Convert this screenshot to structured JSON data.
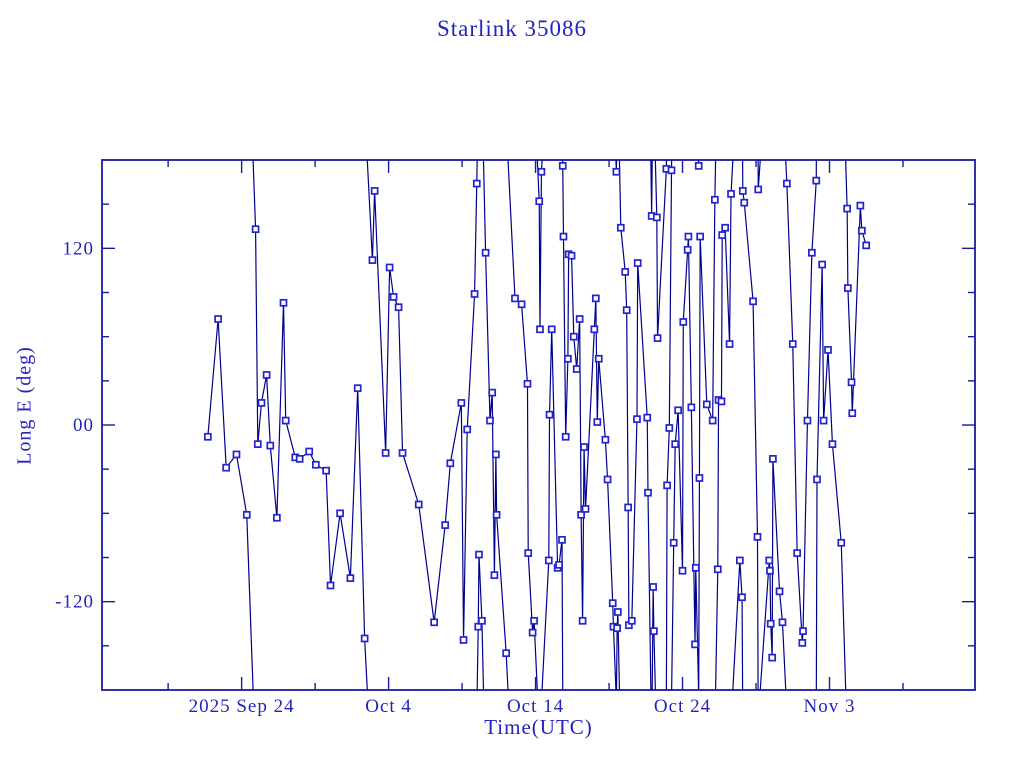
{
  "chart_data": {
    "type": "line",
    "title": "Starlink 35086",
    "xlabel": "Time(UTC)",
    "ylabel": "Long E (deg)",
    "x_unit": "days relative to 2025 Sep 24 (UTC)",
    "y_unit": "degrees East longitude",
    "xlim": [
      -9.5,
      49.9
    ],
    "ylim": [
      -180,
      180
    ],
    "grid": false,
    "legend": "none",
    "wrap_at_deg": 180,
    "marker": "open-square",
    "x_major_ticks": [
      {
        "day": 0,
        "label": "2025 Sep 24"
      },
      {
        "day": 10,
        "label": "Oct  4"
      },
      {
        "day": 20,
        "label": "Oct 14"
      },
      {
        "day": 30,
        "label": "Oct 24"
      },
      {
        "day": 40,
        "label": "Nov  3"
      }
    ],
    "x_minor_step_days": 5,
    "y_major_ticks": [
      {
        "value": 120,
        "label": "120"
      },
      {
        "value": 0,
        "label": "00"
      },
      {
        "value": -120,
        "label": "-120"
      }
    ],
    "y_minor_step_deg": 30,
    "colors": {
      "background": "#FFFFFF",
      "axis": "#1A1AA0",
      "text": "#2323C0",
      "line": "#00008B",
      "marker": "#2323CF",
      "marker_fill": "#FFFFFF"
    },
    "points": [
      [
        -2.3,
        -8
      ],
      [
        -1.6,
        72
      ],
      [
        -1.05,
        -29
      ],
      [
        -0.35,
        -20
      ],
      [
        0.35,
        -61
      ],
      [
        0.95,
        133
      ],
      [
        1.1,
        -13
      ],
      [
        1.35,
        15
      ],
      [
        1.7,
        34
      ],
      [
        1.95,
        -14
      ],
      [
        2.4,
        -63
      ],
      [
        2.85,
        83
      ],
      [
        3.0,
        3
      ],
      [
        3.65,
        -22
      ],
      [
        3.95,
        -23
      ],
      [
        4.6,
        -18
      ],
      [
        5.05,
        -27
      ],
      [
        5.75,
        -31
      ],
      [
        6.05,
        -109
      ],
      [
        6.7,
        -60
      ],
      [
        7.4,
        -104
      ],
      [
        7.9,
        25
      ],
      [
        8.37,
        -145
      ],
      [
        8.9,
        112
      ],
      [
        9.05,
        159
      ],
      [
        9.8,
        -19
      ],
      [
        10.07,
        107
      ],
      [
        10.34,
        87
      ],
      [
        10.68,
        80
      ],
      [
        10.95,
        -19
      ],
      [
        12.05,
        -54
      ],
      [
        13.1,
        -134
      ],
      [
        13.85,
        -68
      ],
      [
        14.2,
        -26
      ],
      [
        14.95,
        15
      ],
      [
        15.1,
        -146
      ],
      [
        15.35,
        -3
      ],
      [
        15.85,
        89
      ],
      [
        16.0,
        164
      ],
      [
        16.1,
        -137
      ],
      [
        16.15,
        -88
      ],
      [
        16.35,
        -133
      ],
      [
        16.6,
        117
      ],
      [
        16.9,
        3
      ],
      [
        17.05,
        22
      ],
      [
        17.2,
        -102
      ],
      [
        17.3,
        -20
      ],
      [
        17.35,
        -61
      ],
      [
        18.0,
        -155
      ],
      [
        18.6,
        86
      ],
      [
        19.05,
        82
      ],
      [
        19.45,
        28
      ],
      [
        19.5,
        -87
      ],
      [
        19.8,
        -141
      ],
      [
        19.9,
        -133
      ],
      [
        20.25,
        152
      ],
      [
        20.3,
        65
      ],
      [
        20.4,
        172
      ],
      [
        20.9,
        -92
      ],
      [
        20.95,
        7
      ],
      [
        21.1,
        65
      ],
      [
        21.5,
        -97
      ],
      [
        21.6,
        -95
      ],
      [
        21.8,
        -78
      ],
      [
        21.85,
        176
      ],
      [
        21.9,
        128
      ],
      [
        22.05,
        -8
      ],
      [
        22.2,
        45
      ],
      [
        22.25,
        116
      ],
      [
        22.45,
        115
      ],
      [
        22.6,
        60
      ],
      [
        22.8,
        38
      ],
      [
        23.0,
        72
      ],
      [
        23.1,
        -61
      ],
      [
        23.2,
        -133
      ],
      [
        23.3,
        -15
      ],
      [
        23.4,
        -57
      ],
      [
        24.0,
        65
      ],
      [
        24.1,
        86
      ],
      [
        24.2,
        2
      ],
      [
        24.3,
        45
      ],
      [
        24.75,
        -10
      ],
      [
        24.9,
        -37
      ],
      [
        25.25,
        -121
      ],
      [
        25.3,
        -137
      ],
      [
        25.5,
        172
      ],
      [
        25.55,
        -138
      ],
      [
        25.6,
        -127
      ],
      [
        25.8,
        134
      ],
      [
        26.1,
        104
      ],
      [
        26.2,
        78
      ],
      [
        26.3,
        -56
      ],
      [
        26.35,
        -136
      ],
      [
        26.55,
        -133
      ],
      [
        26.9,
        4
      ],
      [
        26.95,
        110
      ],
      [
        27.6,
        5
      ],
      [
        27.65,
        -46
      ],
      [
        27.9,
        142
      ],
      [
        28.0,
        -110
      ],
      [
        28.05,
        -140
      ],
      [
        28.25,
        141
      ],
      [
        28.3,
        59
      ],
      [
        28.9,
        174
      ],
      [
        28.95,
        -41
      ],
      [
        29.1,
        -2
      ],
      [
        29.25,
        173
      ],
      [
        29.4,
        -80
      ],
      [
        29.5,
        -13
      ],
      [
        29.7,
        10
      ],
      [
        30.0,
        -99
      ],
      [
        30.05,
        70
      ],
      [
        30.35,
        119
      ],
      [
        30.4,
        128
      ],
      [
        30.6,
        12
      ],
      [
        30.85,
        -149
      ],
      [
        30.9,
        -97
      ],
      [
        31.1,
        176
      ],
      [
        31.15,
        -36
      ],
      [
        31.2,
        128
      ],
      [
        31.65,
        14
      ],
      [
        32.05,
        3
      ],
      [
        32.2,
        153
      ],
      [
        32.4,
        -98
      ],
      [
        32.45,
        17
      ],
      [
        32.65,
        16
      ],
      [
        32.7,
        129
      ],
      [
        32.9,
        134
      ],
      [
        33.2,
        55
      ],
      [
        33.3,
        157
      ],
      [
        33.9,
        -92
      ],
      [
        34.05,
        -117
      ],
      [
        34.1,
        159
      ],
      [
        34.2,
        151
      ],
      [
        34.8,
        84
      ],
      [
        35.1,
        -76
      ],
      [
        35.15,
        160
      ],
      [
        35.9,
        -92
      ],
      [
        35.95,
        -99
      ],
      [
        36.0,
        -135
      ],
      [
        36.1,
        -158
      ],
      [
        36.15,
        -23
      ],
      [
        36.6,
        -113
      ],
      [
        36.8,
        -134
      ],
      [
        37.1,
        164
      ],
      [
        37.5,
        55
      ],
      [
        37.8,
        -87
      ],
      [
        38.15,
        -148
      ],
      [
        38.2,
        -140
      ],
      [
        38.5,
        3
      ],
      [
        38.8,
        117
      ],
      [
        39.1,
        166
      ],
      [
        39.15,
        -37
      ],
      [
        39.5,
        109
      ],
      [
        39.6,
        3
      ],
      [
        39.9,
        51
      ],
      [
        40.2,
        -13
      ],
      [
        40.8,
        -80
      ],
      [
        41.2,
        147
      ],
      [
        41.25,
        93
      ],
      [
        41.5,
        29
      ],
      [
        41.55,
        8
      ],
      [
        42.1,
        149
      ],
      [
        42.2,
        132
      ],
      [
        42.5,
        122
      ]
    ]
  }
}
